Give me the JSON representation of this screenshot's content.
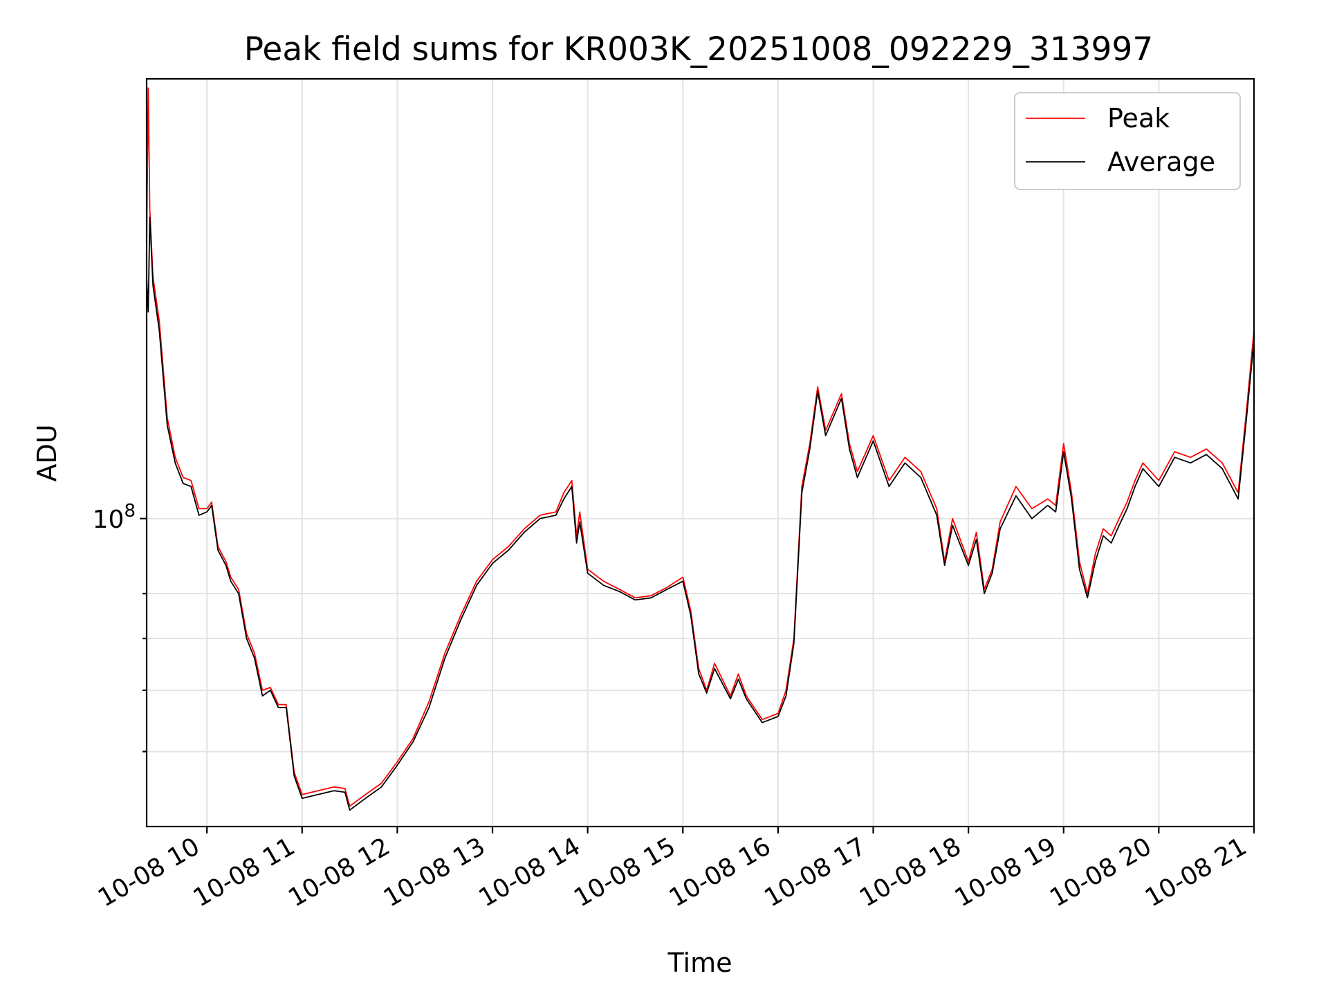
{
  "chart_data": {
    "type": "line",
    "title": "Peak field sums for KR003K_20251008_092229_313997",
    "xlabel": "Time",
    "ylabel": "ADU",
    "yscale": "log",
    "grid": true,
    "legend_position": "top-right",
    "xlim": [
      "10-08 09:22",
      "10-08 21:00"
    ],
    "ylim": [
      40000000,
      370000000
    ],
    "x_ticks": [
      "10-08 10",
      "10-08 11",
      "10-08 12",
      "10-08 13",
      "10-08 14",
      "10-08 15",
      "10-08 16",
      "10-08 17",
      "10-08 18",
      "10-08 19",
      "10-08 20",
      "10-08 21"
    ],
    "y_tick_label": {
      "base": "10",
      "exponent": "8"
    },
    "series": [
      {
        "name": "Peak",
        "color": "#ff0000",
        "points": [
          [
            "10-08 09:22",
            225000000
          ],
          [
            "10-08 09:23",
            360000000
          ],
          [
            "10-08 09:24",
            250000000
          ],
          [
            "10-08 09:26",
            205000000
          ],
          [
            "10-08 09:30",
            180000000
          ],
          [
            "10-08 09:35",
            135000000
          ],
          [
            "10-08 09:40",
            120000000
          ],
          [
            "10-08 09:45",
            113000000
          ],
          [
            "10-08 09:50",
            112000000
          ],
          [
            "10-08 09:55",
            103000000
          ],
          [
            "10-08 10:00",
            103000000
          ],
          [
            "10-08 10:03",
            105000000
          ],
          [
            "10-08 10:07",
            92000000
          ],
          [
            "10-08 10:12",
            88000000
          ],
          [
            "10-08 10:15",
            84000000
          ],
          [
            "10-08 10:20",
            81000000
          ],
          [
            "10-08 10:25",
            71000000
          ],
          [
            "10-08 10:30",
            67000000
          ],
          [
            "10-08 10:35",
            60000000
          ],
          [
            "10-08 10:40",
            60500000
          ],
          [
            "10-08 10:45",
            57500000
          ],
          [
            "10-08 10:50",
            57500000
          ],
          [
            "10-08 10:55",
            47000000
          ],
          [
            "10-08 11:00",
            44000000
          ],
          [
            "10-08 11:10",
            44500000
          ],
          [
            "10-08 11:20",
            45000000
          ],
          [
            "10-08 11:27",
            44800000
          ],
          [
            "10-08 11:30",
            42500000
          ],
          [
            "10-08 11:40",
            44000000
          ],
          [
            "10-08 11:50",
            45500000
          ],
          [
            "10-08 12:00",
            48500000
          ],
          [
            "10-08 12:10",
            52000000
          ],
          [
            "10-08 12:20",
            58000000
          ],
          [
            "10-08 12:30",
            67000000
          ],
          [
            "10-08 12:40",
            75000000
          ],
          [
            "10-08 12:50",
            83000000
          ],
          [
            "10-08 13:00",
            88500000
          ],
          [
            "10-08 13:10",
            92000000
          ],
          [
            "10-08 13:20",
            97000000
          ],
          [
            "10-08 13:30",
            101000000
          ],
          [
            "10-08 13:40",
            102000000
          ],
          [
            "10-08 13:45",
            108000000
          ],
          [
            "10-08 13:50",
            112000000
          ],
          [
            "10-08 13:53",
            95000000
          ],
          [
            "10-08 13:55",
            102000000
          ],
          [
            "10-08 14:00",
            86000000
          ],
          [
            "10-08 14:10",
            83000000
          ],
          [
            "10-08 14:20",
            81000000
          ],
          [
            "10-08 14:30",
            79000000
          ],
          [
            "10-08 14:40",
            79500000
          ],
          [
            "10-08 14:50",
            81500000
          ],
          [
            "10-08 15:00",
            84000000
          ],
          [
            "10-08 15:05",
            76000000
          ],
          [
            "10-08 15:10",
            64000000
          ],
          [
            "10-08 15:15",
            60000000
          ],
          [
            "10-08 15:20",
            65000000
          ],
          [
            "10-08 15:30",
            59000000
          ],
          [
            "10-08 15:35",
            63000000
          ],
          [
            "10-08 15:40",
            59000000
          ],
          [
            "10-08 15:50",
            55000000
          ],
          [
            "10-08 16:00",
            56000000
          ],
          [
            "10-08 16:05",
            60000000
          ],
          [
            "10-08 16:10",
            70000000
          ],
          [
            "10-08 16:15",
            110000000
          ],
          [
            "10-08 16:20",
            125000000
          ],
          [
            "10-08 16:25",
            148000000
          ],
          [
            "10-08 16:30",
            130000000
          ],
          [
            "10-08 16:40",
            145000000
          ],
          [
            "10-08 16:45",
            125000000
          ],
          [
            "10-08 16:50",
            115000000
          ],
          [
            "10-08 17:00",
            128000000
          ],
          [
            "10-08 17:10",
            112000000
          ],
          [
            "10-08 17:20",
            120000000
          ],
          [
            "10-08 17:30",
            115000000
          ],
          [
            "10-08 17:40",
            103000000
          ],
          [
            "10-08 17:45",
            88000000
          ],
          [
            "10-08 17:50",
            100000000
          ],
          [
            "10-08 18:00",
            88000000
          ],
          [
            "10-08 18:05",
            96000000
          ],
          [
            "10-08 18:10",
            81000000
          ],
          [
            "10-08 18:15",
            86000000
          ],
          [
            "10-08 18:20",
            99000000
          ],
          [
            "10-08 18:30",
            110000000
          ],
          [
            "10-08 18:40",
            103000000
          ],
          [
            "10-08 18:50",
            106000000
          ],
          [
            "10-08 18:55",
            104000000
          ],
          [
            "10-08 19:00",
            125000000
          ],
          [
            "10-08 19:05",
            108000000
          ],
          [
            "10-08 19:10",
            88000000
          ],
          [
            "10-08 19:15",
            80000000
          ],
          [
            "10-08 19:20",
            90000000
          ],
          [
            "10-08 19:25",
            97000000
          ],
          [
            "10-08 19:30",
            95000000
          ],
          [
            "10-08 19:35",
            100000000
          ],
          [
            "10-08 19:40",
            105000000
          ],
          [
            "10-08 19:45",
            112000000
          ],
          [
            "10-08 19:50",
            118000000
          ],
          [
            "10-08 20:00",
            112000000
          ],
          [
            "10-08 20:10",
            122000000
          ],
          [
            "10-08 20:20",
            120000000
          ],
          [
            "10-08 20:30",
            123000000
          ],
          [
            "10-08 20:40",
            118000000
          ],
          [
            "10-08 20:50",
            108000000
          ],
          [
            "10-08 20:55",
            136000000
          ],
          [
            "10-08 21:00",
            175000000
          ]
        ]
      },
      {
        "name": "Average",
        "color": "#000000",
        "points": [
          [
            "10-08 09:22",
            205000000
          ],
          [
            "10-08 09:23",
            185000000
          ],
          [
            "10-08 09:24",
            245000000
          ],
          [
            "10-08 09:26",
            200000000
          ],
          [
            "10-08 09:30",
            175000000
          ],
          [
            "10-08 09:35",
            132000000
          ],
          [
            "10-08 09:40",
            118000000
          ],
          [
            "10-08 09:45",
            111000000
          ],
          [
            "10-08 09:50",
            110000000
          ],
          [
            "10-08 09:55",
            101000000
          ],
          [
            "10-08 10:00",
            102000000
          ],
          [
            "10-08 10:03",
            104000000
          ],
          [
            "10-08 10:07",
            91000000
          ],
          [
            "10-08 10:12",
            87000000
          ],
          [
            "10-08 10:15",
            83000000
          ],
          [
            "10-08 10:20",
            80000000
          ],
          [
            "10-08 10:25",
            70000000
          ],
          [
            "10-08 10:30",
            66000000
          ],
          [
            "10-08 10:35",
            59000000
          ],
          [
            "10-08 10:40",
            60000000
          ],
          [
            "10-08 10:45",
            57000000
          ],
          [
            "10-08 10:50",
            57000000
          ],
          [
            "10-08 10:55",
            46500000
          ],
          [
            "10-08 11:00",
            43500000
          ],
          [
            "10-08 11:10",
            44000000
          ],
          [
            "10-08 11:20",
            44500000
          ],
          [
            "10-08 11:27",
            44300000
          ],
          [
            "10-08 11:30",
            42000000
          ],
          [
            "10-08 11:40",
            43500000
          ],
          [
            "10-08 11:50",
            45000000
          ],
          [
            "10-08 12:00",
            48000000
          ],
          [
            "10-08 12:10",
            51500000
          ],
          [
            "10-08 12:20",
            57000000
          ],
          [
            "10-08 12:30",
            66000000
          ],
          [
            "10-08 12:40",
            74000000
          ],
          [
            "10-08 12:50",
            82000000
          ],
          [
            "10-08 13:00",
            87500000
          ],
          [
            "10-08 13:10",
            91000000
          ],
          [
            "10-08 13:20",
            96000000
          ],
          [
            "10-08 13:30",
            100000000
          ],
          [
            "10-08 13:40",
            101000000
          ],
          [
            "10-08 13:45",
            106000000
          ],
          [
            "10-08 13:50",
            110000000
          ],
          [
            "10-08 13:53",
            93000000
          ],
          [
            "10-08 13:55",
            99000000
          ],
          [
            "10-08 14:00",
            85000000
          ],
          [
            "10-08 14:10",
            82000000
          ],
          [
            "10-08 14:20",
            80500000
          ],
          [
            "10-08 14:30",
            78500000
          ],
          [
            "10-08 14:40",
            79000000
          ],
          [
            "10-08 14:50",
            81000000
          ],
          [
            "10-08 15:00",
            83000000
          ],
          [
            "10-08 15:05",
            75000000
          ],
          [
            "10-08 15:10",
            63000000
          ],
          [
            "10-08 15:15",
            59500000
          ],
          [
            "10-08 15:20",
            64000000
          ],
          [
            "10-08 15:30",
            58500000
          ],
          [
            "10-08 15:35",
            62000000
          ],
          [
            "10-08 15:40",
            58500000
          ],
          [
            "10-08 15:50",
            54500000
          ],
          [
            "10-08 16:00",
            55500000
          ],
          [
            "10-08 16:05",
            59000000
          ],
          [
            "10-08 16:10",
            69000000
          ],
          [
            "10-08 16:15",
            108000000
          ],
          [
            "10-08 16:20",
            123000000
          ],
          [
            "10-08 16:25",
            146000000
          ],
          [
            "10-08 16:30",
            128000000
          ],
          [
            "10-08 16:40",
            143000000
          ],
          [
            "10-08 16:45",
            123000000
          ],
          [
            "10-08 16:50",
            113000000
          ],
          [
            "10-08 17:00",
            126000000
          ],
          [
            "10-08 17:10",
            110000000
          ],
          [
            "10-08 17:20",
            118000000
          ],
          [
            "10-08 17:30",
            113000000
          ],
          [
            "10-08 17:40",
            101000000
          ],
          [
            "10-08 17:45",
            87000000
          ],
          [
            "10-08 17:50",
            98000000
          ],
          [
            "10-08 18:00",
            87000000
          ],
          [
            "10-08 18:05",
            94000000
          ],
          [
            "10-08 18:10",
            80000000
          ],
          [
            "10-08 18:15",
            85000000
          ],
          [
            "10-08 18:20",
            97000000
          ],
          [
            "10-08 18:30",
            107000000
          ],
          [
            "10-08 18:40",
            100000000
          ],
          [
            "10-08 18:50",
            104000000
          ],
          [
            "10-08 18:55",
            102000000
          ],
          [
            "10-08 19:00",
            122000000
          ],
          [
            "10-08 19:05",
            106000000
          ],
          [
            "10-08 19:10",
            86000000
          ],
          [
            "10-08 19:15",
            79000000
          ],
          [
            "10-08 19:20",
            88000000
          ],
          [
            "10-08 19:25",
            95000000
          ],
          [
            "10-08 19:30",
            93000000
          ],
          [
            "10-08 19:35",
            98000000
          ],
          [
            "10-08 19:40",
            103000000
          ],
          [
            "10-08 19:45",
            110000000
          ],
          [
            "10-08 19:50",
            116000000
          ],
          [
            "10-08 20:00",
            110000000
          ],
          [
            "10-08 20:10",
            120000000
          ],
          [
            "10-08 20:20",
            118000000
          ],
          [
            "10-08 20:30",
            121000000
          ],
          [
            "10-08 20:40",
            116000000
          ],
          [
            "10-08 20:50",
            106000000
          ],
          [
            "10-08 20:55",
            133000000
          ],
          [
            "10-08 21:00",
            170000000
          ]
        ]
      }
    ]
  }
}
